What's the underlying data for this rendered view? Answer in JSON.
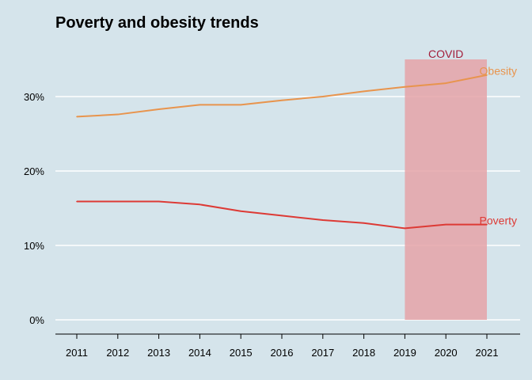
{
  "chart_data": {
    "type": "line",
    "title": "Poverty and obesity trends",
    "xlabel": "",
    "ylabel": "",
    "x": [
      2011,
      2012,
      2013,
      2014,
      2015,
      2016,
      2017,
      2018,
      2019,
      2020,
      2021
    ],
    "x_tick_labels": [
      "2011",
      "2012",
      "2013",
      "2014",
      "2015",
      "2016",
      "2017",
      "2018",
      "2019",
      "2020",
      "2021"
    ],
    "xlim": [
      2010.5,
      2021.8
    ],
    "ylim": [
      0,
      0.35
    ],
    "y_ticks": [
      0,
      0.1,
      0.2,
      0.3
    ],
    "y_tick_labels": [
      "0%",
      "10%",
      "20%",
      "30%"
    ],
    "grid": "horizontal",
    "legend": "none",
    "series": [
      {
        "name": "Obesity",
        "color": "#e8944d",
        "values": [
          0.273,
          0.276,
          0.283,
          0.289,
          0.289,
          0.295,
          0.3,
          0.307,
          0.313,
          0.318,
          0.329
        ]
      },
      {
        "name": "Poverty",
        "color": "#dd3a35",
        "values": [
          0.159,
          0.159,
          0.159,
          0.155,
          0.146,
          0.14,
          0.134,
          0.13,
          0.123,
          0.128,
          0.128
        ]
      }
    ],
    "annotations": [
      {
        "label": "COVID",
        "x_start": 2019,
        "x_end": 2021,
        "y_top": 0.35,
        "fill_color": "#e5a3a8",
        "text_color": "#a31d3a"
      }
    ]
  }
}
